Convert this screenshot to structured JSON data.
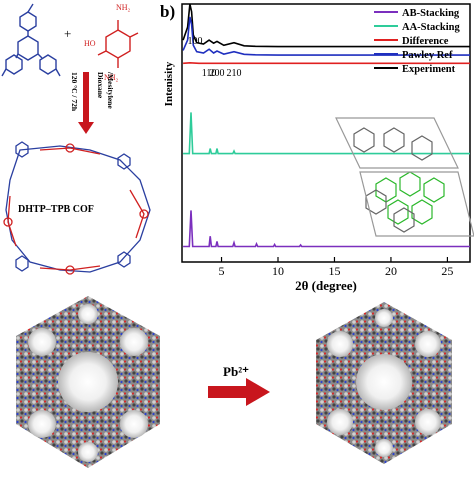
{
  "panel_label": "b)",
  "scheme": {
    "plus_sign": "+",
    "amide_label": "NH₂",
    "hydroxyl_label": "HO",
    "conditions_line1": "120 °C / 72h",
    "conditions_line2": "Dioxane",
    "conditions_line3": "/Mesitylene",
    "cof_name": "DHTP–TPB COF",
    "metal_label": "Pb²⁺"
  },
  "chart_data": {
    "type": "line",
    "xlabel": "2θ (degree)",
    "ylabel": "Intenisity",
    "xlim": [
      1.5,
      27
    ],
    "xticks": [
      5,
      10,
      15,
      20,
      25
    ],
    "xtick_labels": [
      "5",
      "10",
      "15",
      "20",
      "25"
    ],
    "legend": [
      {
        "name": "AB-Stacking",
        "color": "#7b2fbe"
      },
      {
        "name": "AA-Stacking",
        "color": "#2ecc9a"
      },
      {
        "name": "Difference",
        "color": "#e02020"
      },
      {
        "name": "Pawley Ref",
        "color": "#1f2fbf"
      },
      {
        "name": "Experiment",
        "color": "#000000"
      }
    ],
    "peak_labels": [
      {
        "text": "100",
        "x": 2.3
      },
      {
        "text": "110",
        "x": 3.9
      },
      {
        "text": "200",
        "x": 4.6
      },
      {
        "text": "210",
        "x": 6.1
      }
    ],
    "series": [
      {
        "name": "Experiment",
        "color": "#000000",
        "x": [
          1.6,
          2.0,
          2.2,
          2.35,
          2.5,
          2.8,
          3.4,
          3.9,
          4.3,
          4.6,
          5.2,
          6.1,
          7.0,
          8.0,
          10,
          15,
          20,
          25,
          27
        ],
        "y": [
          0.86,
          0.91,
          1.0,
          0.97,
          0.88,
          0.85,
          0.845,
          0.86,
          0.848,
          0.855,
          0.84,
          0.85,
          0.838,
          0.836,
          0.835,
          0.835,
          0.835,
          0.835,
          0.835
        ]
      },
      {
        "name": "Pawley Ref",
        "color": "#1f2fbf",
        "x": [
          1.6,
          2.0,
          2.2,
          2.35,
          2.5,
          2.8,
          3.4,
          3.9,
          4.3,
          4.6,
          5.2,
          6.1,
          7.0,
          8.0,
          10,
          15,
          20,
          25,
          27
        ],
        "y": [
          0.82,
          0.86,
          0.95,
          0.92,
          0.84,
          0.815,
          0.81,
          0.825,
          0.81,
          0.818,
          0.806,
          0.815,
          0.805,
          0.803,
          0.802,
          0.802,
          0.802,
          0.802,
          0.802
        ]
      },
      {
        "name": "Difference",
        "color": "#e02020",
        "x": [
          1.6,
          2.2,
          3,
          5,
          10,
          15,
          20,
          25,
          27
        ],
        "y": [
          0.77,
          0.772,
          0.77,
          0.77,
          0.77,
          0.77,
          0.77,
          0.77,
          0.77
        ]
      },
      {
        "name": "AA-Stacking",
        "color": "#2ecc9a",
        "x": [
          1.6,
          2.15,
          2.3,
          2.45,
          3.9,
          4.0,
          4.1,
          4.5,
          4.6,
          4.7,
          6.0,
          6.1,
          6.2,
          27
        ],
        "y": [
          0.42,
          0.42,
          0.58,
          0.42,
          0.42,
          0.44,
          0.42,
          0.42,
          0.44,
          0.42,
          0.42,
          0.43,
          0.42,
          0.42
        ]
      },
      {
        "name": "AB-Stacking",
        "color": "#7b2fbe",
        "x": [
          1.6,
          2.15,
          2.3,
          2.45,
          3.9,
          4.0,
          4.1,
          4.5,
          4.6,
          4.7,
          6.0,
          6.1,
          6.2,
          8.0,
          8.1,
          8.2,
          9.6,
          9.7,
          9.8,
          11.9,
          12.0,
          12.1,
          27
        ],
        "y": [
          0.06,
          0.06,
          0.2,
          0.06,
          0.06,
          0.1,
          0.06,
          0.06,
          0.08,
          0.06,
          0.06,
          0.075,
          0.06,
          0.06,
          0.07,
          0.06,
          0.06,
          0.068,
          0.06,
          0.06,
          0.066,
          0.06,
          0.06
        ]
      }
    ]
  }
}
